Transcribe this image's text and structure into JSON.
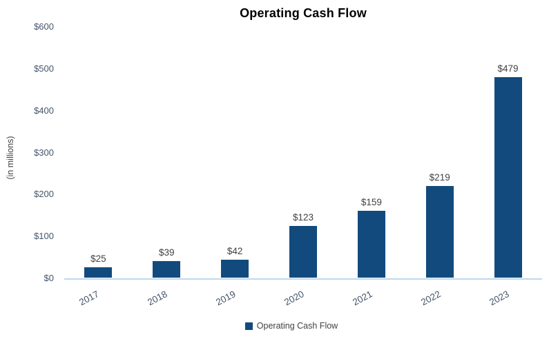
{
  "chart_data": {
    "type": "bar",
    "title": "Operating Cash Flow",
    "categories": [
      "2017",
      "2018",
      "2019",
      "2020",
      "2021",
      "2022",
      "2023"
    ],
    "series": [
      {
        "name": "Operating Cash Flow",
        "values": [
          25,
          39,
          42,
          123,
          159,
          219,
          479
        ]
      }
    ],
    "data_labels": [
      "$25",
      "$39",
      "$42",
      "$123",
      "$159",
      "$219",
      "$479"
    ],
    "ylabel": "(in millions)",
    "xlabel": "",
    "ylim": [
      0,
      600
    ],
    "ytick_step": 100,
    "ytick_labels": [
      "$0",
      "$100",
      "$200",
      "$300",
      "$400",
      "$500",
      "$600"
    ],
    "grid": false,
    "legend_position": "bottom",
    "legend": {
      "label": "Operating Cash Flow"
    },
    "colors": {
      "bar": "#124A7E",
      "axis_line": "#BDD7EE",
      "tick_label": "#44546A",
      "data_label": "#404040",
      "title": "#000000",
      "background": "#FFFFFF"
    }
  }
}
